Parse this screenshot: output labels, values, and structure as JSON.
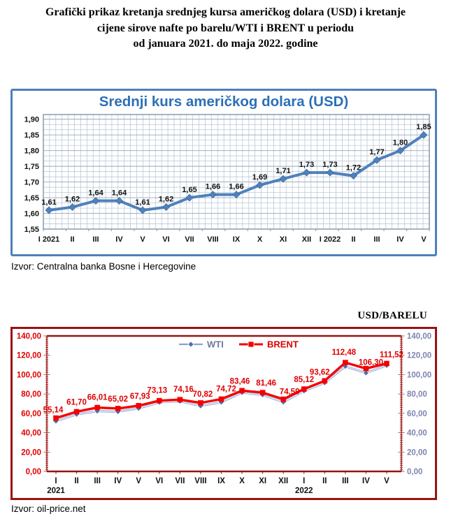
{
  "header": {
    "title_lines": [
      "Grafički prikaz kretanja srednjeg kursa američkog dolara (USD) i kretanje",
      "cijene sirove nafte po barelu/WTI i BRENT u periodu",
      "od januara 2021. do maja  2022. godine"
    ]
  },
  "usd_chart": {
    "title": "Srednji kurs američkog dolara (USD)",
    "source": "Izvor: Centralna banka Bosne i Hercegovine",
    "colors": {
      "line": "#4f81bd",
      "marker_edge": "#36618f",
      "frame": "#4e80bc",
      "title": "#2c6fb7",
      "grid_minor": "#b3c2d2",
      "grid_major": "#93a8bd",
      "plot_border": "#7f93ab",
      "label": "#111111"
    }
  },
  "oil_chart": {
    "unit_label": "USD/BARELU",
    "source": "Izvor: oil-price.net",
    "colors": {
      "frame": "#9a1212",
      "axis": "#9a1212",
      "wti_line": "#8aa0d0",
      "wti_marker": "#4e6eae",
      "wti_text": "#73779c",
      "brent": "#f50000",
      "brent_label": "#e00000",
      "left_ticks": "#e00000",
      "right_ticks": "#7d85b0",
      "x_label": "#111111"
    }
  },
  "chart_data": [
    {
      "type": "line",
      "title": "Srednji kurs američkog dolara (USD)",
      "categories": [
        "I 2021",
        "II",
        "III",
        "IV",
        "V",
        "VI",
        "VII",
        "VIII",
        "IX",
        "X",
        "XI",
        "XII",
        "I 2022",
        "II",
        "III",
        "IV",
        "V"
      ],
      "series": [
        {
          "name": "Srednji kurs USD",
          "values": [
            1.61,
            1.62,
            1.64,
            1.64,
            1.61,
            1.62,
            1.65,
            1.66,
            1.66,
            1.69,
            1.71,
            1.73,
            1.73,
            1.72,
            1.77,
            1.8,
            1.85
          ],
          "point_labels": [
            "1,61",
            "1,62",
            "1,64",
            "1,64",
            "1,61",
            "1,62",
            "1,65",
            "1,66",
            "1,66",
            "1,69",
            "1,71",
            "1,73",
            "1,73",
            "1,72",
            "1,77",
            "1,80",
            "1,85"
          ]
        }
      ],
      "ylim": [
        1.55,
        1.9
      ],
      "ytick_step": 0.05,
      "ytick_labels": [
        "1,90",
        "1,85",
        "1,80",
        "1,75",
        "1,70",
        "1,65",
        "1,60",
        "1,55"
      ],
      "grid": true,
      "legend": false,
      "xlabel": "",
      "ylabel": ""
    },
    {
      "type": "line",
      "title": "",
      "categories": [
        "I",
        "II",
        "III",
        "IV",
        "V",
        "VI",
        "VII",
        "VIII",
        "IX",
        "X",
        "XI",
        "XII",
        "I",
        "II",
        "III",
        "IV",
        "V"
      ],
      "category_year_notes": [
        {
          "index": 0,
          "year": "2021"
        },
        {
          "index": 12,
          "year": "2022"
        }
      ],
      "series": [
        {
          "name": "WTI",
          "values": [
            52.0,
            59.0,
            62.3,
            61.7,
            65.2,
            71.4,
            72.5,
            67.7,
            71.5,
            81.5,
            79.1,
            71.7,
            83.2,
            91.6,
            108.5,
            101.8,
            109.5
          ]
        },
        {
          "name": "BRENT",
          "values": [
            55.14,
            61.7,
            66.01,
            65.02,
            67.93,
            73.13,
            74.16,
            70.82,
            74.72,
            83.46,
            81.46,
            74.59,
            85.12,
            93.62,
            112.48,
            106.3,
            111.52
          ],
          "point_labels": [
            "55,14",
            "61,70",
            "66,01",
            "65,02",
            "67,93",
            "73,13",
            "74,16",
            "70,82",
            "74,72",
            "83,46",
            "81,46",
            "74,59",
            "85,12",
            "93,62",
            "112,48",
            "106,30",
            "111,52"
          ]
        }
      ],
      "ylim": [
        0,
        140
      ],
      "ytick_step": 20,
      "ytick_labels": [
        "140,00",
        "120,00",
        "100,00",
        "80,00",
        "60,00",
        "40,00",
        "20,00",
        "0,00"
      ],
      "legend_labels": [
        "WTI",
        "BRENT"
      ],
      "legend_position": "top-center",
      "grid": false,
      "xlabel": "",
      "ylabel": "USD/BARELU"
    }
  ]
}
